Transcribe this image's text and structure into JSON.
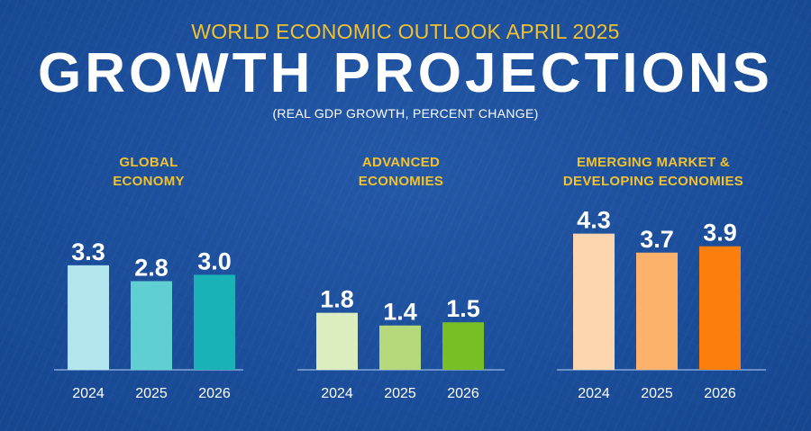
{
  "header": {
    "subtitle": "WORLD ECONOMIC OUTLOOK APRIL 2025",
    "title": "GROWTH PROJECTIONS",
    "units": "(REAL GDP GROWTH, PERCENT CHANGE)"
  },
  "chart_data": [
    {
      "type": "bar",
      "title_lines": [
        "GLOBAL",
        "ECONOMY"
      ],
      "categories": [
        "2024",
        "2025",
        "2026"
      ],
      "values": [
        3.3,
        2.8,
        3.0
      ],
      "value_labels": [
        "3.3",
        "2.8",
        "3.0"
      ],
      "colors": [
        "#b2e5ee",
        "#5fcfd2",
        "#18b2b7"
      ],
      "ylim": [
        0,
        5
      ],
      "grid": false
    },
    {
      "type": "bar",
      "title_lines": [
        "ADVANCED",
        "ECONOMIES"
      ],
      "categories": [
        "2024",
        "2025",
        "2026"
      ],
      "values": [
        1.8,
        1.4,
        1.5
      ],
      "value_labels": [
        "1.8",
        "1.4",
        "1.5"
      ],
      "colors": [
        "#dcedc0",
        "#b5d87a",
        "#78bf26"
      ],
      "ylim": [
        0,
        5
      ],
      "grid": false
    },
    {
      "type": "bar",
      "title_lines": [
        "EMERGING MARKET &",
        "DEVELOPING ECONOMIES"
      ],
      "categories": [
        "2024",
        "2025",
        "2026"
      ],
      "values": [
        4.3,
        3.7,
        3.9
      ],
      "value_labels": [
        "4.3",
        "3.7",
        "3.9"
      ],
      "colors": [
        "#fdd6b0",
        "#fdb26c",
        "#fb7f0c"
      ],
      "ylim": [
        0,
        5
      ],
      "grid": false
    }
  ]
}
